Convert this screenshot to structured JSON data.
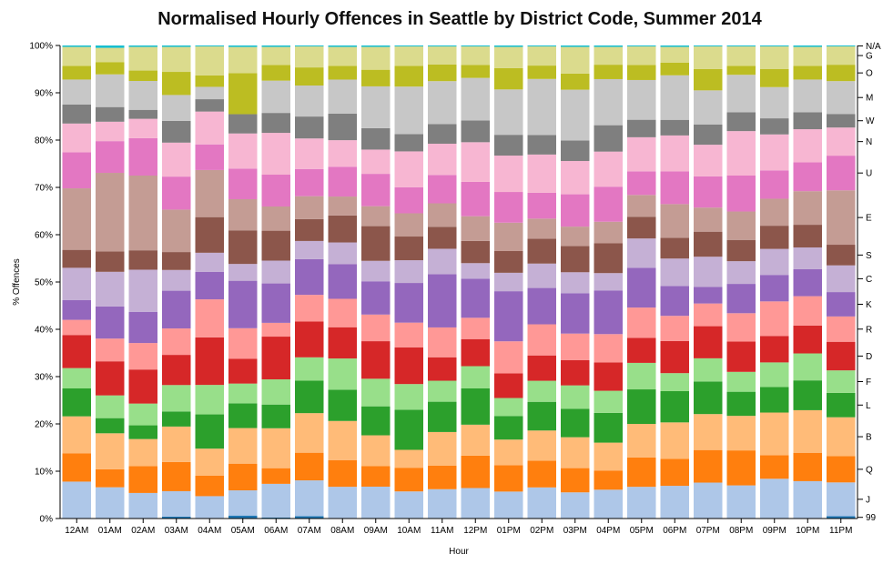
{
  "chart_data": {
    "type": "bar",
    "stacked": true,
    "normalized": true,
    "title": "Normalised Hourly Offences in Seattle by District Code, Summer 2014",
    "xlabel": "Hour",
    "ylabel": "% Offences",
    "ylim": [
      0,
      100
    ],
    "y_tick_labels": [
      "0%",
      "10%",
      "20%",
      "30%",
      "40%",
      "50%",
      "60%",
      "70%",
      "80%",
      "90%",
      "100%"
    ],
    "categories": [
      "12AM",
      "01AM",
      "02AM",
      "03AM",
      "04AM",
      "05AM",
      "06AM",
      "07AM",
      "08AM",
      "09AM",
      "10AM",
      "11AM",
      "12PM",
      "01PM",
      "02PM",
      "03PM",
      "04PM",
      "05PM",
      "06PM",
      "07PM",
      "08PM",
      "09PM",
      "10PM",
      "11PM"
    ],
    "legend_placement": "right",
    "series": [
      {
        "name": "99",
        "color": "#1f77b4",
        "values": [
          0.1,
          0.1,
          0.1,
          0.4,
          0.1,
          0.6,
          0.2,
          0.5,
          0.1,
          0.1,
          0.1,
          0.1,
          0.1,
          0.1,
          0.1,
          0.1,
          0.1,
          0.1,
          0.1,
          0.1,
          0.1,
          0.1,
          0.1,
          0.5
        ]
      },
      {
        "name": "J",
        "color": "#aec7e8",
        "values": [
          7.7,
          6.5,
          5.3,
          5.4,
          4.6,
          5.1,
          7.1,
          7.5,
          6.6,
          6.6,
          5.5,
          5.9,
          6.2,
          5.6,
          6.4,
          5.4,
          5.9,
          6.6,
          6.8,
          7.5,
          6.9,
          8.3,
          7.8,
          7.2
        ]
      },
      {
        "name": "Q",
        "color": "#ff7f0e",
        "values": [
          6.0,
          3.8,
          5.7,
          6.2,
          4.3,
          5.4,
          3.3,
          5.8,
          5.6,
          4.3,
          4.9,
          4.8,
          6.7,
          5.6,
          5.6,
          5.1,
          4.0,
          6.2,
          5.7,
          6.9,
          7.4,
          5.0,
          6.0,
          5.6
        ]
      },
      {
        "name": "B",
        "color": "#ffbb78",
        "values": [
          7.8,
          7.6,
          5.7,
          7.5,
          5.7,
          7.2,
          8.4,
          8.3,
          8.3,
          6.5,
          3.7,
          6.9,
          6.4,
          5.4,
          6.3,
          6.5,
          5.8,
          7.1,
          7.7,
          7.6,
          7.3,
          9.0,
          9.0,
          8.3
        ]
      },
      {
        "name": "L",
        "color": "#2ca02c",
        "values": [
          5.9,
          3.2,
          2.9,
          3.2,
          7.2,
          5.0,
          5.0,
          6.8,
          6.6,
          6.1,
          8.3,
          6.2,
          7.5,
          5.0,
          6.0,
          6.0,
          6.2,
          7.3,
          6.6,
          6.9,
          5.1,
          5.4,
          6.3,
          5.2
        ]
      },
      {
        "name": "F",
        "color": "#98df8a",
        "values": [
          4.3,
          4.8,
          4.6,
          5.6,
          6.2,
          4.0,
          5.3,
          4.9,
          6.6,
          5.8,
          5.3,
          4.3,
          4.6,
          3.8,
          4.4,
          4.9,
          4.6,
          5.6,
          3.8,
          4.9,
          4.2,
          5.2,
          5.7,
          4.8
        ]
      },
      {
        "name": "D",
        "color": "#d62728",
        "values": [
          7.0,
          7.2,
          7.2,
          6.4,
          10.0,
          5.0,
          9.0,
          7.5,
          6.6,
          7.9,
          7.6,
          4.8,
          5.6,
          5.2,
          5.3,
          5.3,
          5.9,
          5.3,
          6.8,
          6.8,
          6.4,
          5.6,
          5.9,
          6.1
        ]
      },
      {
        "name": "R",
        "color": "#ff9896",
        "values": [
          3.2,
          4.8,
          5.6,
          5.6,
          8.0,
          6.2,
          2.9,
          5.6,
          6.0,
          5.6,
          5.1,
          6.1,
          4.4,
          6.8,
          6.5,
          5.6,
          5.9,
          6.4,
          5.3,
          4.8,
          6.0,
          7.3,
          6.2,
          5.4
        ]
      },
      {
        "name": "K",
        "color": "#9467bd",
        "values": [
          4.2,
          6.8,
          6.6,
          8.0,
          5.8,
          9.6,
          8.3,
          7.5,
          7.3,
          7.0,
          8.2,
          10.9,
          8.1,
          10.6,
          7.6,
          8.5,
          9.1,
          8.4,
          6.3,
          3.5,
          6.2,
          5.6,
          5.7,
          5.2
        ]
      },
      {
        "name": "C",
        "color": "#c5b0d5",
        "values": [
          6.8,
          7.3,
          8.9,
          4.4,
          4.0,
          3.4,
          4.8,
          3.8,
          4.6,
          4.3,
          4.7,
          5.2,
          3.2,
          3.9,
          5.1,
          4.4,
          3.6,
          6.2,
          5.8,
          6.4,
          4.8,
          5.5,
          4.6,
          5.7
        ]
      },
      {
        "name": "S",
        "color": "#8c564b",
        "values": [
          3.8,
          4.3,
          4.1,
          3.8,
          7.5,
          6.8,
          6.3,
          4.6,
          5.7,
          7.3,
          4.9,
          4.5,
          4.6,
          4.6,
          5.2,
          5.5,
          6.2,
          4.6,
          4.4,
          5.3,
          4.5,
          4.9,
          4.8,
          4.4
        ]
      },
      {
        "name": "E",
        "color": "#c49c94",
        "values": [
          13.0,
          16.6,
          15.8,
          9.0,
          9.9,
          6.3,
          5.1,
          4.8,
          4.0,
          4.2,
          4.8,
          4.8,
          5.1,
          6.0,
          4.2,
          4.1,
          4.5,
          4.6,
          7.1,
          5.1,
          6.0,
          5.7,
          7.1,
          11.6
        ]
      },
      {
        "name": "U",
        "color": "#e377c2",
        "values": [
          7.6,
          6.7,
          7.9,
          7.0,
          5.4,
          6.2,
          6.7,
          5.7,
          6.3,
          6.8,
          5.4,
          5.8,
          7.1,
          6.5,
          5.4,
          6.8,
          7.3,
          5.0,
          6.9,
          6.6,
          7.6,
          6.0,
          6.1,
          7.4
        ]
      },
      {
        "name": "N",
        "color": "#f7b6d2",
        "values": [
          6.1,
          4.1,
          4.1,
          7.2,
          6.9,
          7.1,
          8.8,
          6.4,
          5.6,
          5.1,
          7.4,
          6.4,
          8.2,
          7.7,
          8.0,
          7.0,
          7.3,
          7.2,
          7.6,
          6.7,
          9.4,
          7.6,
          7.0,
          6.0
        ]
      },
      {
        "name": "W",
        "color": "#7f7f7f",
        "values": [
          4.0,
          3.1,
          1.9,
          4.6,
          2.6,
          3.9,
          4.2,
          4.6,
          5.6,
          4.5,
          3.6,
          4.0,
          4.5,
          4.4,
          4.1,
          4.3,
          5.5,
          3.7,
          3.3,
          4.3,
          4.0,
          3.4,
          3.6,
          2.9
        ]
      },
      {
        "name": "M",
        "color": "#c7c7c7",
        "values": [
          5.3,
          6.9,
          6.1,
          5.5,
          2.6,
          0.0,
          6.8,
          6.5,
          7.2,
          8.8,
          9.8,
          8.8,
          8.8,
          9.6,
          11.7,
          10.7,
          9.6,
          8.4,
          9.4,
          7.2,
          7.9,
          6.6,
          6.9,
          7.0
        ]
      },
      {
        "name": "O",
        "color": "#bcbd22",
        "values": [
          2.9,
          2.6,
          2.2,
          4.9,
          2.4,
          8.3,
          3.3,
          3.8,
          2.9,
          3.5,
          4.3,
          3.4,
          2.7,
          4.5,
          2.8,
          3.4,
          3.0,
          3.2,
          2.7,
          4.5,
          1.9,
          3.8,
          2.9,
          3.5
        ]
      },
      {
        "name": "G",
        "color": "#dbdb8d",
        "values": [
          4.0,
          3.0,
          5.0,
          5.3,
          6.1,
          5.3,
          3.8,
          4.4,
          4.0,
          4.8,
          4.0,
          3.7,
          3.8,
          4.5,
          4.0,
          5.6,
          3.7,
          3.9,
          3.3,
          4.8,
          4.1,
          4.8,
          4.0,
          3.9
        ]
      },
      {
        "name": "N/A",
        "color": "#17becf",
        "values": [
          0.3,
          0.5,
          0.3,
          0.3,
          0.2,
          0.3,
          0.3,
          0.2,
          0.3,
          0.3,
          0.2,
          0.2,
          0.2,
          0.3,
          0.2,
          0.3,
          0.3,
          0.2,
          0.3,
          0.2,
          0.2,
          0.2,
          0.3,
          0.2
        ]
      }
    ]
  }
}
